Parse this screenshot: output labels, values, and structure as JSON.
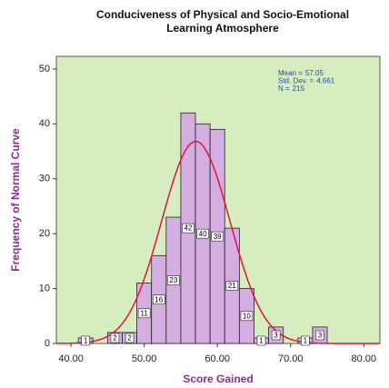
{
  "chart_data": {
    "type": "histogram",
    "title": "Conduciveness of Physical and Socio-Emotional",
    "subtitle": "Learning Atmosphere",
    "x_label": "Score Gained",
    "y_label": "Frequency of Normal Curve",
    "bins": [
      41,
      43,
      45,
      47,
      49,
      51,
      53,
      55,
      57,
      59,
      61,
      63,
      65,
      67,
      69,
      71,
      73,
      75
    ],
    "values": [
      1,
      0,
      2,
      2,
      11,
      16,
      23,
      42,
      40,
      39,
      21,
      10,
      1,
      3,
      0,
      1,
      3
    ],
    "color": "#d4aee0",
    "curve_color": "#e0143c",
    "background": "#d6edc0",
    "xlim": [
      38,
      82.2
    ],
    "xticks": [
      {
        "value": 40,
        "label": "40.00"
      },
      {
        "value": 50,
        "label": "50.00"
      },
      {
        "value": 60,
        "label": "60.00"
      },
      {
        "value": 70,
        "label": "70.00"
      },
      {
        "value": 80,
        "label": "80.00"
      }
    ],
    "ylim": [
      0,
      52.3
    ],
    "yticks": [
      0,
      10,
      20,
      30,
      40,
      50
    ],
    "stats": [
      {
        "label": "Mean =",
        "value": 57.05
      },
      {
        "label": "Std. Dev. =",
        "value": 4.661
      },
      {
        "label": "N =",
        "value": 215
      }
    ]
  }
}
